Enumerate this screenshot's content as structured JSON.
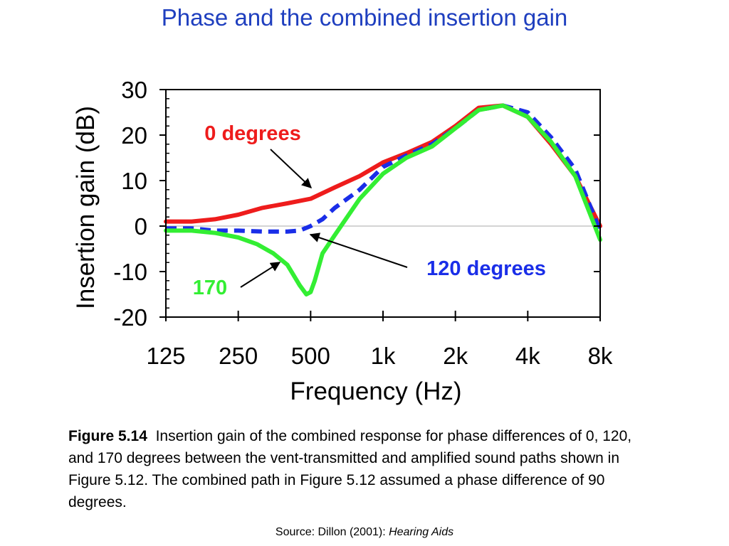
{
  "title": "Phase and the combined insertion gain",
  "chart_data": {
    "type": "line",
    "title": "Phase and the combined insertion gain",
    "xlabel": "Frequency (Hz)",
    "ylabel": "Insertion gain (dB)",
    "x_scale": "log",
    "x_ticks": [
      125,
      250,
      500,
      1000,
      2000,
      4000,
      8000
    ],
    "x_tick_labels": [
      "125",
      "250",
      "500",
      "1k",
      "2k",
      "4k",
      "8k"
    ],
    "y_ticks": [
      -20,
      -10,
      0,
      10,
      20,
      30
    ],
    "y_tick_labels": [
      "-20",
      "-10",
      "0",
      "10",
      "20",
      "30"
    ],
    "xlim": [
      125,
      8000
    ],
    "ylim": [
      -20,
      30
    ],
    "grid": false,
    "zero_line": true,
    "series": [
      {
        "name": "0 degrees",
        "color": "#ee1c1c",
        "style": "solid",
        "x": [
          125,
          160,
          200,
          250,
          315,
          400,
          500,
          630,
          800,
          1000,
          1250,
          1600,
          2000,
          2500,
          3150,
          4000,
          5000,
          6300,
          8000
        ],
        "y": [
          1,
          1,
          1.5,
          2.5,
          4,
          5,
          6,
          8.5,
          11,
          14,
          16,
          18.5,
          22,
          26,
          26.5,
          24,
          18,
          11,
          0
        ]
      },
      {
        "name": "120 degrees",
        "color": "#1a2ee8",
        "style": "dashed",
        "x": [
          125,
          160,
          200,
          250,
          315,
          400,
          450,
          500,
          560,
          630,
          800,
          1000,
          1250,
          1600,
          2000,
          2500,
          3150,
          4000,
          5000,
          6300,
          8000
        ],
        "y": [
          -0.5,
          -0.5,
          -1,
          -1,
          -1.2,
          -1.2,
          -1,
          0,
          1.5,
          4,
          8,
          13,
          15.5,
          18,
          21.5,
          25.5,
          26.5,
          25,
          19.5,
          12.5,
          -1
        ]
      },
      {
        "name": "170",
        "color": "#33ee33",
        "style": "solid",
        "x": [
          125,
          160,
          200,
          250,
          300,
          350,
          400,
          450,
          480,
          500,
          520,
          560,
          630,
          800,
          1000,
          1250,
          1600,
          2000,
          2500,
          3150,
          4000,
          5000,
          6300,
          8000
        ],
        "y": [
          -1,
          -1,
          -1.5,
          -2.5,
          -4,
          -6,
          -8.5,
          -13,
          -15,
          -14.5,
          -12,
          -6,
          -2,
          6,
          11.5,
          15,
          17.5,
          21.5,
          25.5,
          26.5,
          24,
          18.5,
          11,
          -3
        ]
      }
    ],
    "annotations": [
      {
        "text": "0 degrees",
        "color": "#ee1c1c",
        "points_to": "0 degrees"
      },
      {
        "text": "120 degrees",
        "color": "#1a2ee8",
        "points_to": "120 degrees"
      },
      {
        "text": "170",
        "color": "#33ee33",
        "points_to": "170"
      }
    ]
  },
  "caption": {
    "figure_label": "Figure 5.14",
    "text": "Insertion gain of the combined response for phase differences of 0, 120, and 170 degrees between the vent-transmitted and amplified sound paths shown in Figure 5.12.  The combined path in Figure 5.12 assumed a phase difference of 90 degrees."
  },
  "source": {
    "prefix": "Source:  Dillon (2001): ",
    "title": "Hearing Aids"
  }
}
